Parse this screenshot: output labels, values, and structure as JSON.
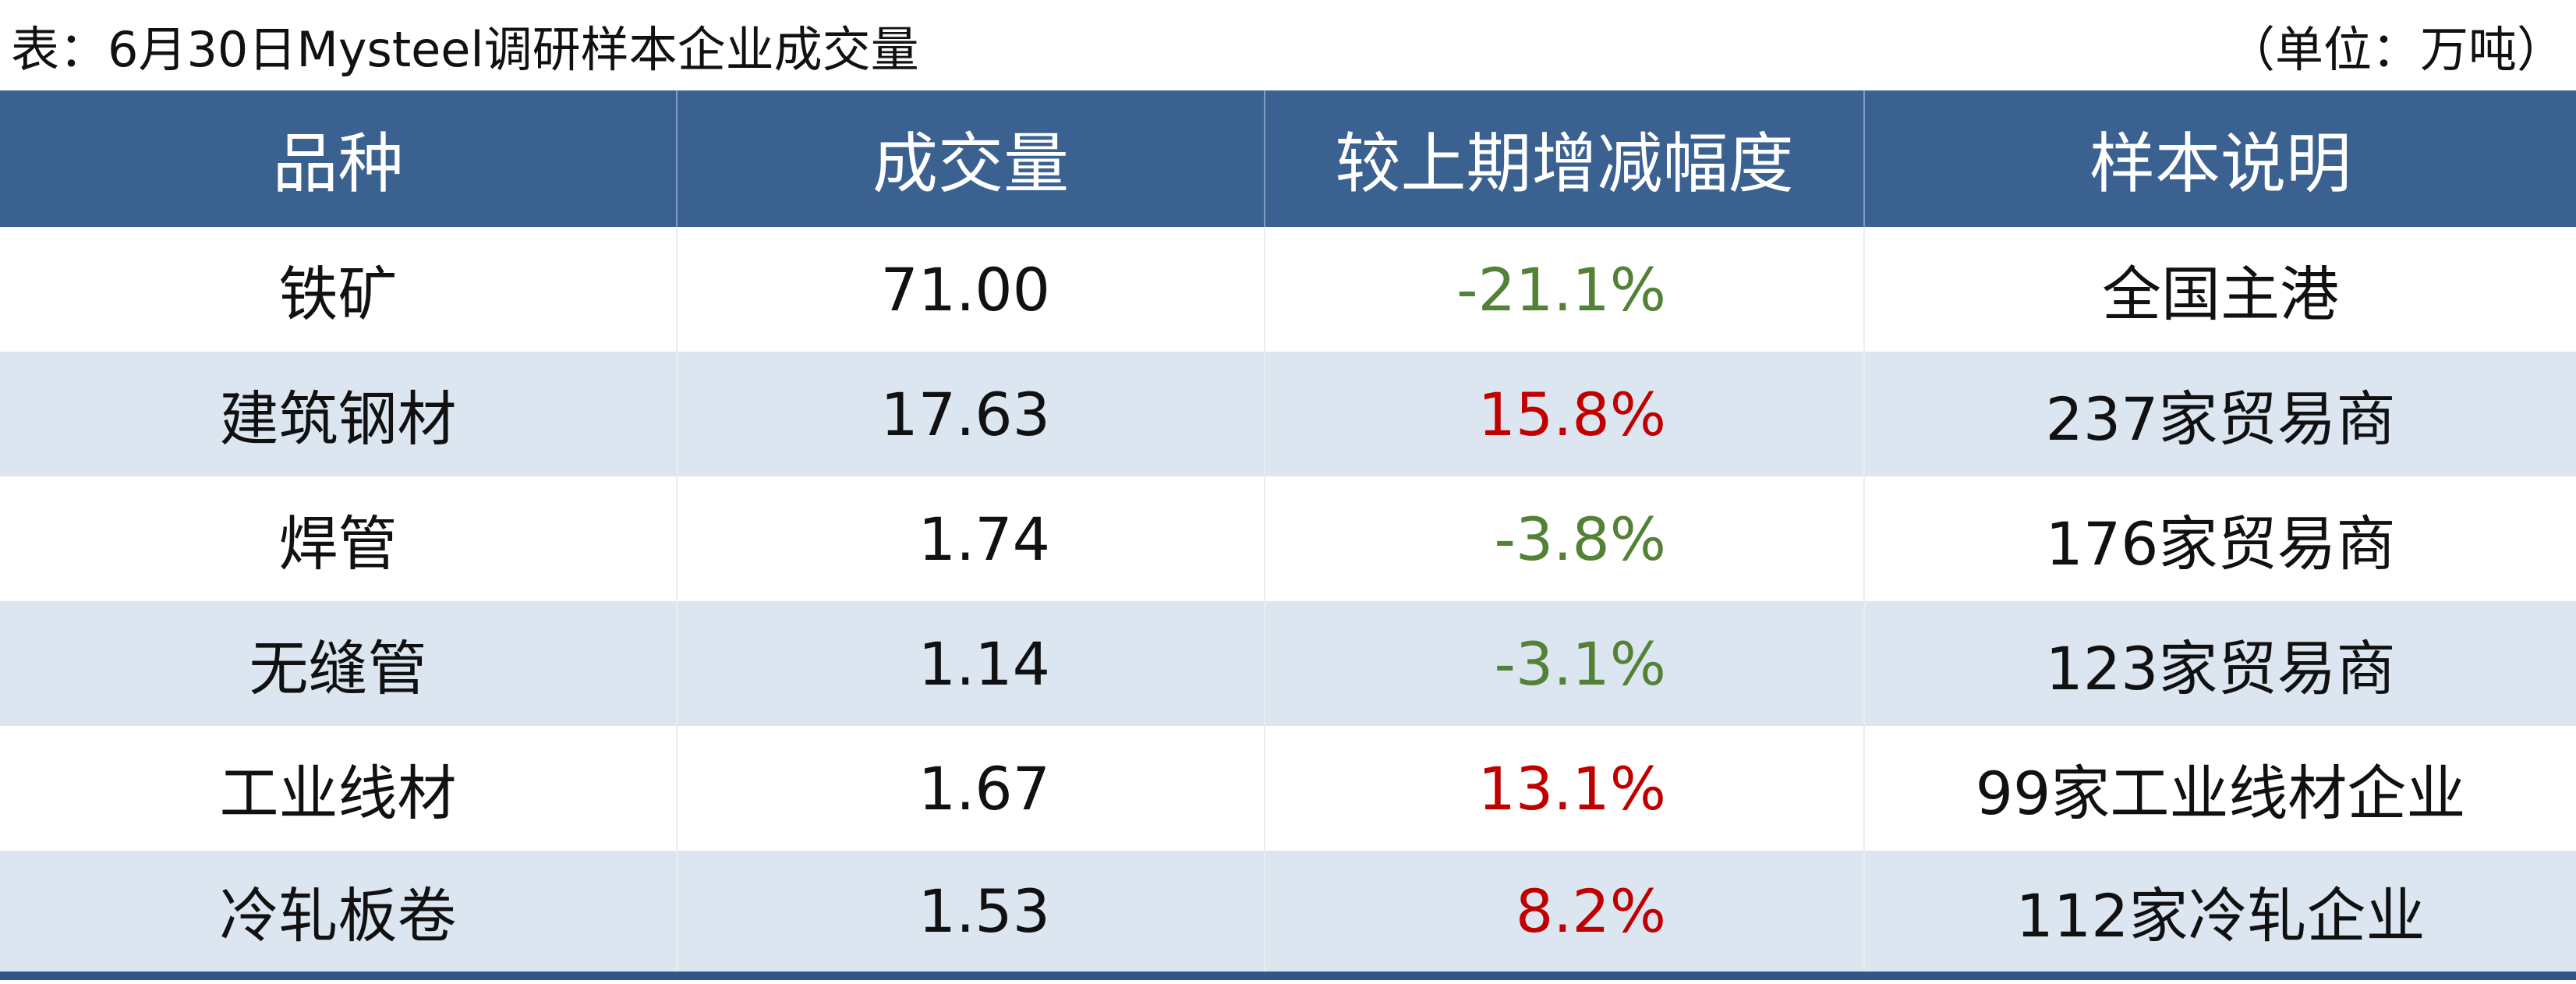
{
  "header": {
    "title": "表：6月30日Mysteel调研样本企业成交量",
    "unit": "（单位：万吨）"
  },
  "table": {
    "columns": [
      "品种",
      "成交量",
      "较上期增减幅度",
      "样本说明"
    ],
    "rows": [
      [
        "铁矿",
        "71.00",
        "-21.1%",
        "全国主港"
      ],
      [
        "建筑钢材",
        "17.63",
        "15.8%",
        "237家贸易商"
      ],
      [
        "焊管",
        "1.74",
        "-3.8%",
        "176家贸易商"
      ],
      [
        "无缝管",
        "1.14",
        "-3.1%",
        "123家贸易商"
      ],
      [
        "工业线材",
        "1.67",
        "13.1%",
        "99家工业线材企业"
      ],
      [
        "冷轧板卷",
        "1.53",
        "8.2%",
        "112家冷轧企业"
      ]
    ]
  }
}
